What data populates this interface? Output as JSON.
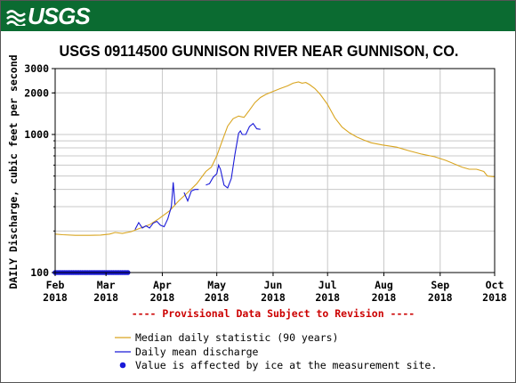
{
  "logo": {
    "text": "USGS",
    "icon": "usgs-wave-icon",
    "banner_color": "#0b6b31"
  },
  "chart_data": {
    "type": "line",
    "title": "USGS 09114500 GUNNISON RIVER NEAR GUNNISON, CO.",
    "ylabel": "DAILY Discharge, cubic feet per second",
    "xlabel": "",
    "yscale": "log",
    "ylim": [
      100,
      3000
    ],
    "y_ticks": [
      100,
      1000,
      2000,
      3000
    ],
    "y_tick_labels": [
      "100",
      "1000",
      "2000",
      "3000"
    ],
    "x_range": [
      "2018-02-01",
      "2018-10-01"
    ],
    "x_ticks": [
      {
        "date": "2018-02-01",
        "label": [
          "Feb",
          "2018"
        ]
      },
      {
        "date": "2018-03-01",
        "label": [
          "Mar",
          "2018"
        ]
      },
      {
        "date": "2018-04-01",
        "label": [
          "Apr",
          "2018"
        ]
      },
      {
        "date": "2018-05-01",
        "label": [
          "May",
          "2018"
        ]
      },
      {
        "date": "2018-06-01",
        "label": [
          "Jun",
          "2018"
        ]
      },
      {
        "date": "2018-07-01",
        "label": [
          "Jul",
          "2018"
        ]
      },
      {
        "date": "2018-08-01",
        "label": [
          "Aug",
          "2018"
        ]
      },
      {
        "date": "2018-09-01",
        "label": [
          "Sep",
          "2018"
        ]
      },
      {
        "date": "2018-10-01",
        "label": [
          "Oct",
          "2018"
        ]
      }
    ],
    "grid": true,
    "provisional_note": "---- Provisional Data Subject to Revision ----",
    "series": [
      {
        "name": "Median daily statistic (90 years)",
        "color": "#d9a520",
        "points": [
          [
            "2018-02-01",
            190
          ],
          [
            "2018-02-05",
            188
          ],
          [
            "2018-02-12",
            186
          ],
          [
            "2018-02-20",
            186
          ],
          [
            "2018-02-26",
            187
          ],
          [
            "2018-03-03",
            190
          ],
          [
            "2018-03-06",
            195
          ],
          [
            "2018-03-10",
            192
          ],
          [
            "2018-03-15",
            198
          ],
          [
            "2018-03-20",
            210
          ],
          [
            "2018-03-25",
            222
          ],
          [
            "2018-03-30",
            245
          ],
          [
            "2018-04-05",
            280
          ],
          [
            "2018-04-10",
            330
          ],
          [
            "2018-04-15",
            380
          ],
          [
            "2018-04-20",
            440
          ],
          [
            "2018-04-25",
            540
          ],
          [
            "2018-04-28",
            580
          ],
          [
            "2018-05-01",
            700
          ],
          [
            "2018-05-04",
            900
          ],
          [
            "2018-05-07",
            1150
          ],
          [
            "2018-05-10",
            1300
          ],
          [
            "2018-05-13",
            1360
          ],
          [
            "2018-05-16",
            1330
          ],
          [
            "2018-05-19",
            1500
          ],
          [
            "2018-05-22",
            1700
          ],
          [
            "2018-05-25",
            1850
          ],
          [
            "2018-05-28",
            1950
          ],
          [
            "2018-06-01",
            2050
          ],
          [
            "2018-06-05",
            2150
          ],
          [
            "2018-06-09",
            2250
          ],
          [
            "2018-06-12",
            2350
          ],
          [
            "2018-06-15",
            2400
          ],
          [
            "2018-06-17",
            2350
          ],
          [
            "2018-06-19",
            2380
          ],
          [
            "2018-06-21",
            2300
          ],
          [
            "2018-06-24",
            2150
          ],
          [
            "2018-06-27",
            1950
          ],
          [
            "2018-07-01",
            1650
          ],
          [
            "2018-07-05",
            1320
          ],
          [
            "2018-07-09",
            1130
          ],
          [
            "2018-07-13",
            1030
          ],
          [
            "2018-07-17",
            960
          ],
          [
            "2018-07-21",
            910
          ],
          [
            "2018-07-25",
            870
          ],
          [
            "2018-07-31",
            840
          ],
          [
            "2018-08-08",
            810
          ],
          [
            "2018-08-15",
            760
          ],
          [
            "2018-08-22",
            720
          ],
          [
            "2018-08-29",
            690
          ],
          [
            "2018-09-04",
            650
          ],
          [
            "2018-09-09",
            610
          ],
          [
            "2018-09-13",
            580
          ],
          [
            "2018-09-17",
            560
          ],
          [
            "2018-09-21",
            560
          ],
          [
            "2018-09-25",
            540
          ],
          [
            "2018-09-27",
            500
          ],
          [
            "2018-09-30",
            495
          ],
          [
            "2018-10-01",
            495
          ]
        ]
      },
      {
        "name": "Daily mean discharge",
        "color": "#1a1ad8",
        "segments": [
          [
            [
              "2018-03-17",
              205
            ],
            [
              "2018-03-19",
              230
            ],
            [
              "2018-03-21",
              210
            ],
            [
              "2018-03-23",
              218
            ],
            [
              "2018-03-25",
              210
            ],
            [
              "2018-03-27",
              228
            ],
            [
              "2018-03-29",
              235
            ],
            [
              "2018-03-31",
              220
            ],
            [
              "2018-04-02",
              215
            ],
            [
              "2018-04-04",
              245
            ],
            [
              "2018-04-06",
              300
            ],
            [
              "2018-04-07",
              450
            ],
            [
              "2018-04-08",
              310
            ]
          ],
          [
            [
              "2018-04-13",
              380
            ],
            [
              "2018-04-15",
              330
            ],
            [
              "2018-04-17",
              390
            ],
            [
              "2018-04-19",
              400
            ],
            [
              "2018-04-21",
              400
            ]
          ],
          [
            [
              "2018-04-25",
              430
            ],
            [
              "2018-04-27",
              440
            ],
            [
              "2018-04-29",
              490
            ],
            [
              "2018-05-01",
              520
            ],
            [
              "2018-05-02",
              600
            ],
            [
              "2018-05-03",
              560
            ],
            [
              "2018-05-05",
              430
            ],
            [
              "2018-05-07",
              410
            ],
            [
              "2018-05-09",
              480
            ],
            [
              "2018-05-11",
              720
            ],
            [
              "2018-05-13",
              1020
            ],
            [
              "2018-05-14",
              1060
            ],
            [
              "2018-05-15",
              1000
            ],
            [
              "2018-05-17",
              1000
            ],
            [
              "2018-05-19",
              1140
            ],
            [
              "2018-05-21",
              1200
            ],
            [
              "2018-05-23",
              1100
            ],
            [
              "2018-05-25",
              1090
            ]
          ]
        ]
      },
      {
        "name": "Value is affected by ice at the measurement site.",
        "color": "#1a1ad8",
        "marker": "dot",
        "value": 100,
        "date_range": [
          "2018-02-01",
          "2018-03-13"
        ]
      }
    ]
  }
}
